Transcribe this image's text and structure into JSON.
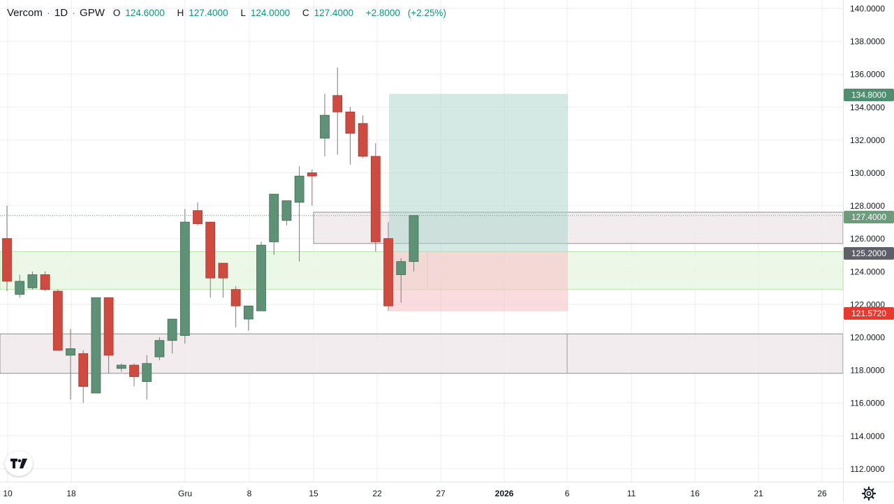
{
  "header": {
    "symbol": "Vercom",
    "interval": "1D",
    "exchange": "GPW",
    "ohlc": [
      {
        "key": "O",
        "value": "124.6000"
      },
      {
        "key": "H",
        "value": "127.4000"
      },
      {
        "key": "L",
        "value": "124.0000"
      },
      {
        "key": "C",
        "value": "127.4000"
      }
    ],
    "change": "+2.8000",
    "change_pct": "(+2.25%)"
  },
  "price_badges": [
    {
      "value": "134.8000",
      "color": "#4f8f70"
    },
    {
      "value": "127.4000",
      "color": "#6e9b7d"
    },
    {
      "value": "125.2000",
      "color": "#5d606b"
    },
    {
      "value": "121.5720",
      "color": "#e8392e"
    }
  ],
  "colors": {
    "up": "#5e9176",
    "down": "#cf4a3f",
    "grid": "#eceef2",
    "target_zone": "#a9d4c9",
    "stop_zone": "#f6c4ca",
    "support_zone": "#e6f6df",
    "range_zone": "#f1e9eb"
  },
  "icons": {
    "logo": "tradingview-logo-icon",
    "settings": "gear-icon"
  },
  "chart_data": {
    "type": "candlestick",
    "title": "Vercom · 1D · GPW",
    "y_axis": {
      "min": 111,
      "max": 140.5,
      "ticks": [
        "140.0000",
        "138.0000",
        "136.0000",
        "134.0000",
        "132.0000",
        "130.0000",
        "128.0000",
        "126.0000",
        "124.0000",
        "122.0000",
        "120.0000",
        "118.0000",
        "116.0000",
        "114.0000",
        "112.0000"
      ]
    },
    "x_axis": {
      "labels": [
        "10",
        "18",
        "Gru",
        "8",
        "15",
        "22",
        "27",
        "2026",
        "6",
        "11",
        "16",
        "21",
        "26"
      ],
      "bold_label": "2026"
    },
    "last_price_line": 127.4,
    "candles": [
      {
        "o": 126.0,
        "h": 128.0,
        "l": 122.8,
        "c": 123.4
      },
      {
        "o": 122.6,
        "h": 123.8,
        "l": 122.4,
        "c": 123.4
      },
      {
        "o": 123.0,
        "h": 124.0,
        "l": 122.9,
        "c": 123.8
      },
      {
        "o": 123.8,
        "h": 124.0,
        "l": 122.8,
        "c": 122.9
      },
      {
        "o": 122.8,
        "h": 122.9,
        "l": 119.2,
        "c": 119.2
      },
      {
        "o": 118.9,
        "h": 120.5,
        "l": 116.2,
        "c": 119.3
      },
      {
        "o": 119.0,
        "h": 119.2,
        "l": 116.0,
        "c": 117.0
      },
      {
        "o": 116.6,
        "h": 122.4,
        "l": 116.6,
        "c": 122.4
      },
      {
        "o": 122.4,
        "h": 122.4,
        "l": 117.8,
        "c": 118.9
      },
      {
        "o": 118.1,
        "h": 118.4,
        "l": 117.9,
        "c": 118.3
      },
      {
        "o": 118.3,
        "h": 118.4,
        "l": 117.0,
        "c": 117.6
      },
      {
        "o": 117.3,
        "h": 118.9,
        "l": 116.2,
        "c": 118.4
      },
      {
        "o": 118.8,
        "h": 120.0,
        "l": 118.6,
        "c": 119.8
      },
      {
        "o": 119.8,
        "h": 121.1,
        "l": 119.0,
        "c": 121.1
      },
      {
        "o": 120.1,
        "h": 127.8,
        "l": 119.6,
        "c": 127.0
      },
      {
        "o": 127.7,
        "h": 128.2,
        "l": 126.8,
        "c": 126.9
      },
      {
        "o": 127.0,
        "h": 127.0,
        "l": 122.4,
        "c": 123.6
      },
      {
        "o": 124.5,
        "h": 124.5,
        "l": 122.4,
        "c": 123.6
      },
      {
        "o": 122.9,
        "h": 123.1,
        "l": 120.6,
        "c": 121.9
      },
      {
        "o": 121.1,
        "h": 121.8,
        "l": 120.4,
        "c": 121.9
      },
      {
        "o": 121.6,
        "h": 125.8,
        "l": 121.6,
        "c": 125.6
      },
      {
        "o": 125.8,
        "h": 128.7,
        "l": 125.0,
        "c": 128.7
      },
      {
        "o": 127.1,
        "h": 128.3,
        "l": 126.8,
        "c": 128.3
      },
      {
        "o": 128.2,
        "h": 130.4,
        "l": 124.6,
        "c": 129.8
      },
      {
        "o": 130.0,
        "h": 130.2,
        "l": 128.0,
        "c": 129.8
      },
      {
        "o": 132.1,
        "h": 134.8,
        "l": 131.0,
        "c": 133.5
      },
      {
        "o": 134.7,
        "h": 136.4,
        "l": 131.1,
        "c": 133.7
      },
      {
        "o": 133.7,
        "h": 134.0,
        "l": 130.5,
        "c": 132.4
      },
      {
        "o": 133.0,
        "h": 133.5,
        "l": 130.9,
        "c": 131.0
      },
      {
        "o": 131.0,
        "h": 131.8,
        "l": 125.2,
        "c": 125.8
      },
      {
        "o": 126.0,
        "h": 127.0,
        "l": 121.6,
        "c": 121.9
      },
      {
        "o": 123.8,
        "h": 124.8,
        "l": 122.1,
        "c": 124.6
      },
      {
        "o": 124.6,
        "h": 127.4,
        "l": 124.0,
        "c": 127.4
      }
    ],
    "zones": [
      {
        "type": "target",
        "top": 134.8,
        "bottom": 125.2
      },
      {
        "type": "stop",
        "top": 125.2,
        "bottom": 121.572
      },
      {
        "type": "support",
        "top": 125.2,
        "bottom": 122.9
      },
      {
        "type": "range",
        "top": 127.6,
        "bottom": 125.7
      },
      {
        "type": "range",
        "top": 120.2,
        "bottom": 117.8
      }
    ]
  }
}
